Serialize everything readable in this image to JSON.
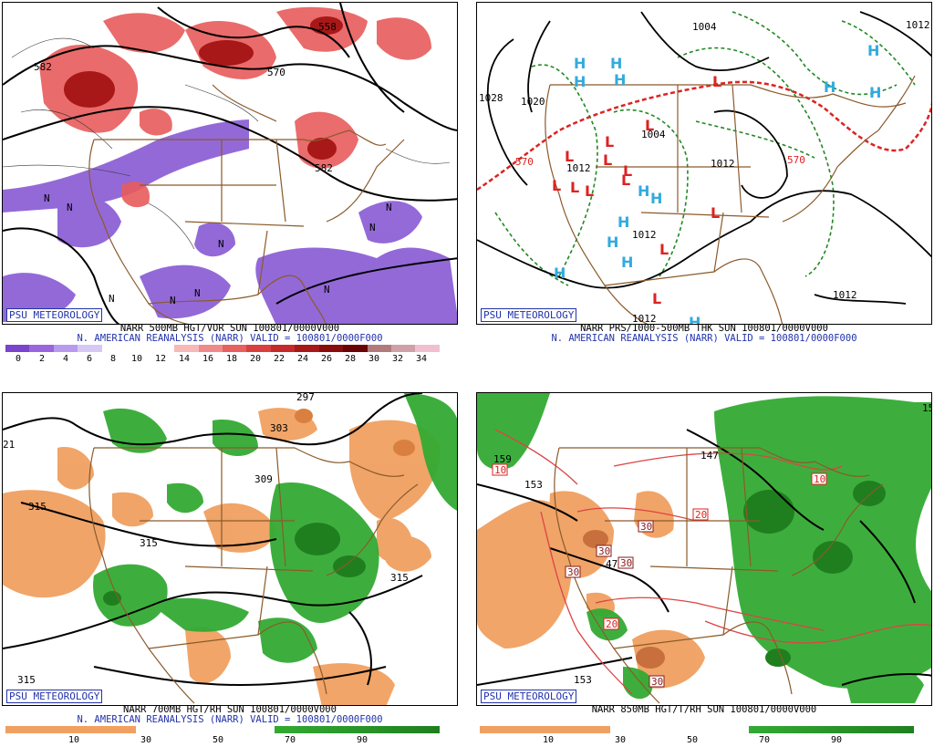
{
  "panels": [
    {
      "credit": "PSU METEOROLOGY",
      "line1": "NARR 500MB HGT/VOR SUN 100801/0000V000",
      "line2": "N. AMERICAN REANALYSIS (NARR) VALID = 100801/0000F000",
      "scale_ticks": [
        "0",
        "2",
        "4",
        "6",
        "8",
        "10",
        "12",
        "14",
        "16",
        "18",
        "20",
        "22",
        "24",
        "26",
        "28",
        "30",
        "32",
        "34"
      ],
      "scale_colors": [
        "#7a44cc",
        "#9966dd",
        "#b89aee",
        "#d6c8f5",
        "#ffffff",
        "#ffffff",
        "#ffffff",
        "#f7b8b8",
        "#f08a8a",
        "#e86060",
        "#d93f3f",
        "#c42a2a",
        "#a81818",
        "#8a0c0c",
        "#6a0404",
        "#b27a7a",
        "#d0a0a8",
        "#f0c0d0"
      ],
      "map_labels": [
        "582",
        "570",
        "558",
        "582",
        "N",
        "N",
        "N",
        "N",
        "N",
        "N",
        "N",
        "N",
        "N"
      ]
    },
    {
      "credit": "PSU METEOROLOGY",
      "line1": "NARR PRS/1000-500MB THK SUN 100801/0000V000",
      "line2": "N. AMERICAN REANALYSIS (NARR) VALID = 100801/0000F000",
      "map_labels": [
        "1028",
        "1020",
        "1004",
        "1012",
        "1012",
        "1012",
        "1012",
        "1012",
        "1012",
        "1004",
        "570",
        "570"
      ],
      "highs": [
        "H",
        "H",
        "H",
        "H",
        "H",
        "H",
        "H",
        "H",
        "H",
        "H",
        "H",
        "H",
        "H",
        "H"
      ],
      "lows": [
        "L",
        "L",
        "L",
        "L",
        "L",
        "L",
        "L",
        "L",
        "L",
        "L",
        "L",
        "L",
        "L"
      ]
    },
    {
      "credit": "PSU METEOROLOGY",
      "line1": "NARR 700MB HGT/RH SUN 100801/0000V000",
      "line2": "N. AMERICAN REANALYSIS (NARR) VALID = 100801/0000F000",
      "scale_ticks": [
        "10",
        "30",
        "50",
        "70",
        "90"
      ],
      "map_labels": [
        "297",
        "303",
        "309",
        "315",
        "315",
        "315",
        "315",
        "21"
      ]
    },
    {
      "credit": "PSU METEOROLOGY",
      "line1": "NARR 850MB HGT/T/RH SUN 100801/0000V000",
      "line2": "",
      "scale_ticks": [
        "10",
        "30",
        "50",
        "70",
        "90"
      ],
      "map_labels": [
        "159",
        "153",
        "147",
        "153",
        "15"
      ],
      "temp_labels": [
        "10",
        "10",
        "20",
        "20",
        "30",
        "30",
        "30",
        "30",
        "30",
        "47"
      ]
    }
  ],
  "colors": {
    "credit_blue": "#2233aa",
    "rh_dry": "#f0a060",
    "rh_moist": "#33aa33",
    "high_blue": "#33aadd",
    "low_red": "#dd2222"
  }
}
